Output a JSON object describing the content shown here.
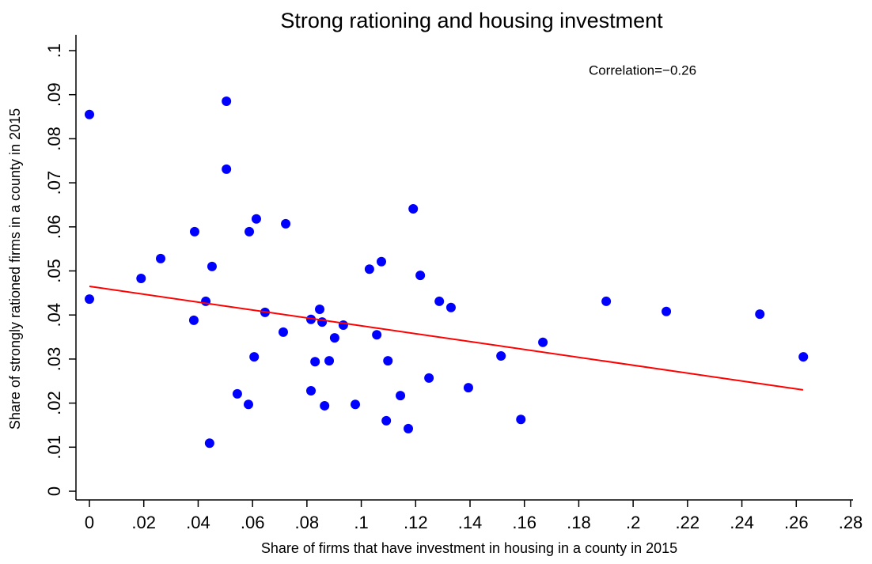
{
  "chart_data": {
    "type": "scatter",
    "title": "Strong rationing and housing investment",
    "xlabel": "Share of firms that have investment in housing in a county in 2015",
    "ylabel": "Share of strongly rationed firms in a county in 2015",
    "annotation": "Correlation=−0.26",
    "color": "#0000ff",
    "x": [
      0,
      0,
      0.019,
      0.0262,
      0.0387,
      0.0384,
      0.0428,
      0.0442,
      0.0451,
      0.0504,
      0.0504,
      0.0544,
      0.0585,
      0.0588,
      0.0606,
      0.0614,
      0.0646,
      0.0722,
      0.0713,
      0.0815,
      0.0815,
      0.083,
      0.0847,
      0.0856,
      0.0865,
      0.0882,
      0.0902,
      0.0934,
      0.0978,
      0.103,
      0.1057,
      0.1074,
      0.1092,
      0.1098,
      0.1144,
      0.1173,
      0.1191,
      0.1217,
      0.1249,
      0.1287,
      0.133,
      0.1394,
      0.1514,
      0.1587,
      0.1668,
      0.1901,
      0.2122,
      0.2466,
      0.2626
    ],
    "values": [
      0.0855,
      0.0436,
      0.0483,
      0.0528,
      0.0589,
      0.0388,
      0.0431,
      0.0109,
      0.051,
      0.0885,
      0.0731,
      0.0221,
      0.0197,
      0.0589,
      0.0305,
      0.0618,
      0.0406,
      0.0607,
      0.0361,
      0.0228,
      0.039,
      0.0294,
      0.0413,
      0.0384,
      0.0194,
      0.0296,
      0.0348,
      0.0377,
      0.0197,
      0.0504,
      0.0355,
      0.0521,
      0.016,
      0.0296,
      0.0217,
      0.0142,
      0.0641,
      0.049,
      0.0257,
      0.0431,
      0.0417,
      0.0235,
      0.0307,
      0.0163,
      0.0338,
      0.0431,
      0.0408,
      0.0402,
      0.0305
    ],
    "fit_line": {
      "color": "#ff0000",
      "x": [
        0,
        0.2625
      ],
      "values": [
        0.0465,
        0.023
      ]
    },
    "xlim": [
      0,
      0.28
    ],
    "ylim": [
      0,
      0.1
    ],
    "xticks": [
      0,
      {
        "value": 0.02,
        "label": ".02"
      },
      {
        "value": 0.04,
        "label": ".04"
      },
      {
        "value": 0.06,
        "label": ".06"
      },
      {
        "value": 0.08,
        "label": ".08"
      },
      {
        "value": 0.1,
        "label": ".1"
      },
      {
        "value": 0.12,
        "label": ".12"
      },
      {
        "value": 0.14,
        "label": ".14"
      },
      {
        "value": 0.16,
        "label": ".16"
      },
      {
        "value": 0.18,
        "label": ".18"
      },
      {
        "value": 0.2,
        "label": ".2"
      },
      {
        "value": 0.22,
        "label": ".22"
      },
      {
        "value": 0.24,
        "label": ".24"
      },
      {
        "value": 0.26,
        "label": ".26"
      },
      {
        "value": 0.28,
        "label": ".28"
      }
    ],
    "yticks": [
      0,
      {
        "value": 0.01,
        "label": ".01"
      },
      {
        "value": 0.02,
        "label": ".02"
      },
      {
        "value": 0.03,
        "label": ".03"
      },
      {
        "value": 0.04,
        "label": ".04"
      },
      {
        "value": 0.05,
        "label": ".05"
      },
      {
        "value": 0.06,
        "label": ".06"
      },
      {
        "value": 0.07,
        "label": ".07"
      },
      {
        "value": 0.08,
        "label": ".08"
      },
      {
        "value": 0.09,
        "label": ".09"
      },
      {
        "value": 0.1,
        "label": ".1"
      }
    ],
    "grid": false
  }
}
